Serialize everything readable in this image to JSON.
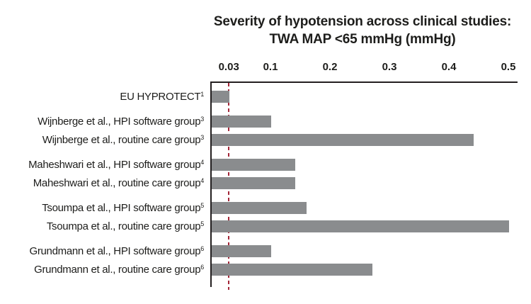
{
  "chart_data": {
    "type": "bar",
    "orientation": "horizontal",
    "title": "Severity of hypotension across clinical studies:",
    "subtitle": "TWA MAP <65 mmHg (mmHg)",
    "xlim": [
      0,
      0.5
    ],
    "tick_values": [
      0.03,
      0.1,
      0.2,
      0.3,
      0.4,
      0.5
    ],
    "tick_labels": [
      "0.03",
      "0.1",
      "0.2",
      "0.3",
      "0.4",
      "0.5"
    ],
    "grid": false,
    "legend": false,
    "bar_color": "#8a8c8e",
    "axis_color": "#231f20",
    "text_color": "#1d1d1b",
    "reference_line": {
      "value": 0.03,
      "style": "dashed",
      "color": "#a32638"
    },
    "groups": [
      {
        "rows": [
          {
            "label": "EU HYPROTECT",
            "sup": "1",
            "value": 0.03
          }
        ]
      },
      {
        "rows": [
          {
            "label": "Wijnberge et al., HPI software group",
            "sup": "3",
            "value": 0.1
          },
          {
            "label": "Wijnberge et al., routine care group",
            "sup": "3",
            "value": 0.44
          }
        ]
      },
      {
        "rows": [
          {
            "label": "Maheshwari et al., HPI software group",
            "sup": "4",
            "value": 0.14
          },
          {
            "label": "Maheshwari et al., routine care group",
            "sup": "4",
            "value": 0.14
          }
        ]
      },
      {
        "rows": [
          {
            "label": "Tsoumpa et al., HPI software group",
            "sup": "5",
            "value": 0.16
          },
          {
            "label": "Tsoumpa et al., routine care group",
            "sup": "5",
            "value": 0.5
          }
        ]
      },
      {
        "rows": [
          {
            "label": "Grundmann et al., HPI software group",
            "sup": "6",
            "value": 0.1
          },
          {
            "label": "Grundmann et al., routine care group",
            "sup": "6",
            "value": 0.27
          }
        ]
      }
    ]
  }
}
